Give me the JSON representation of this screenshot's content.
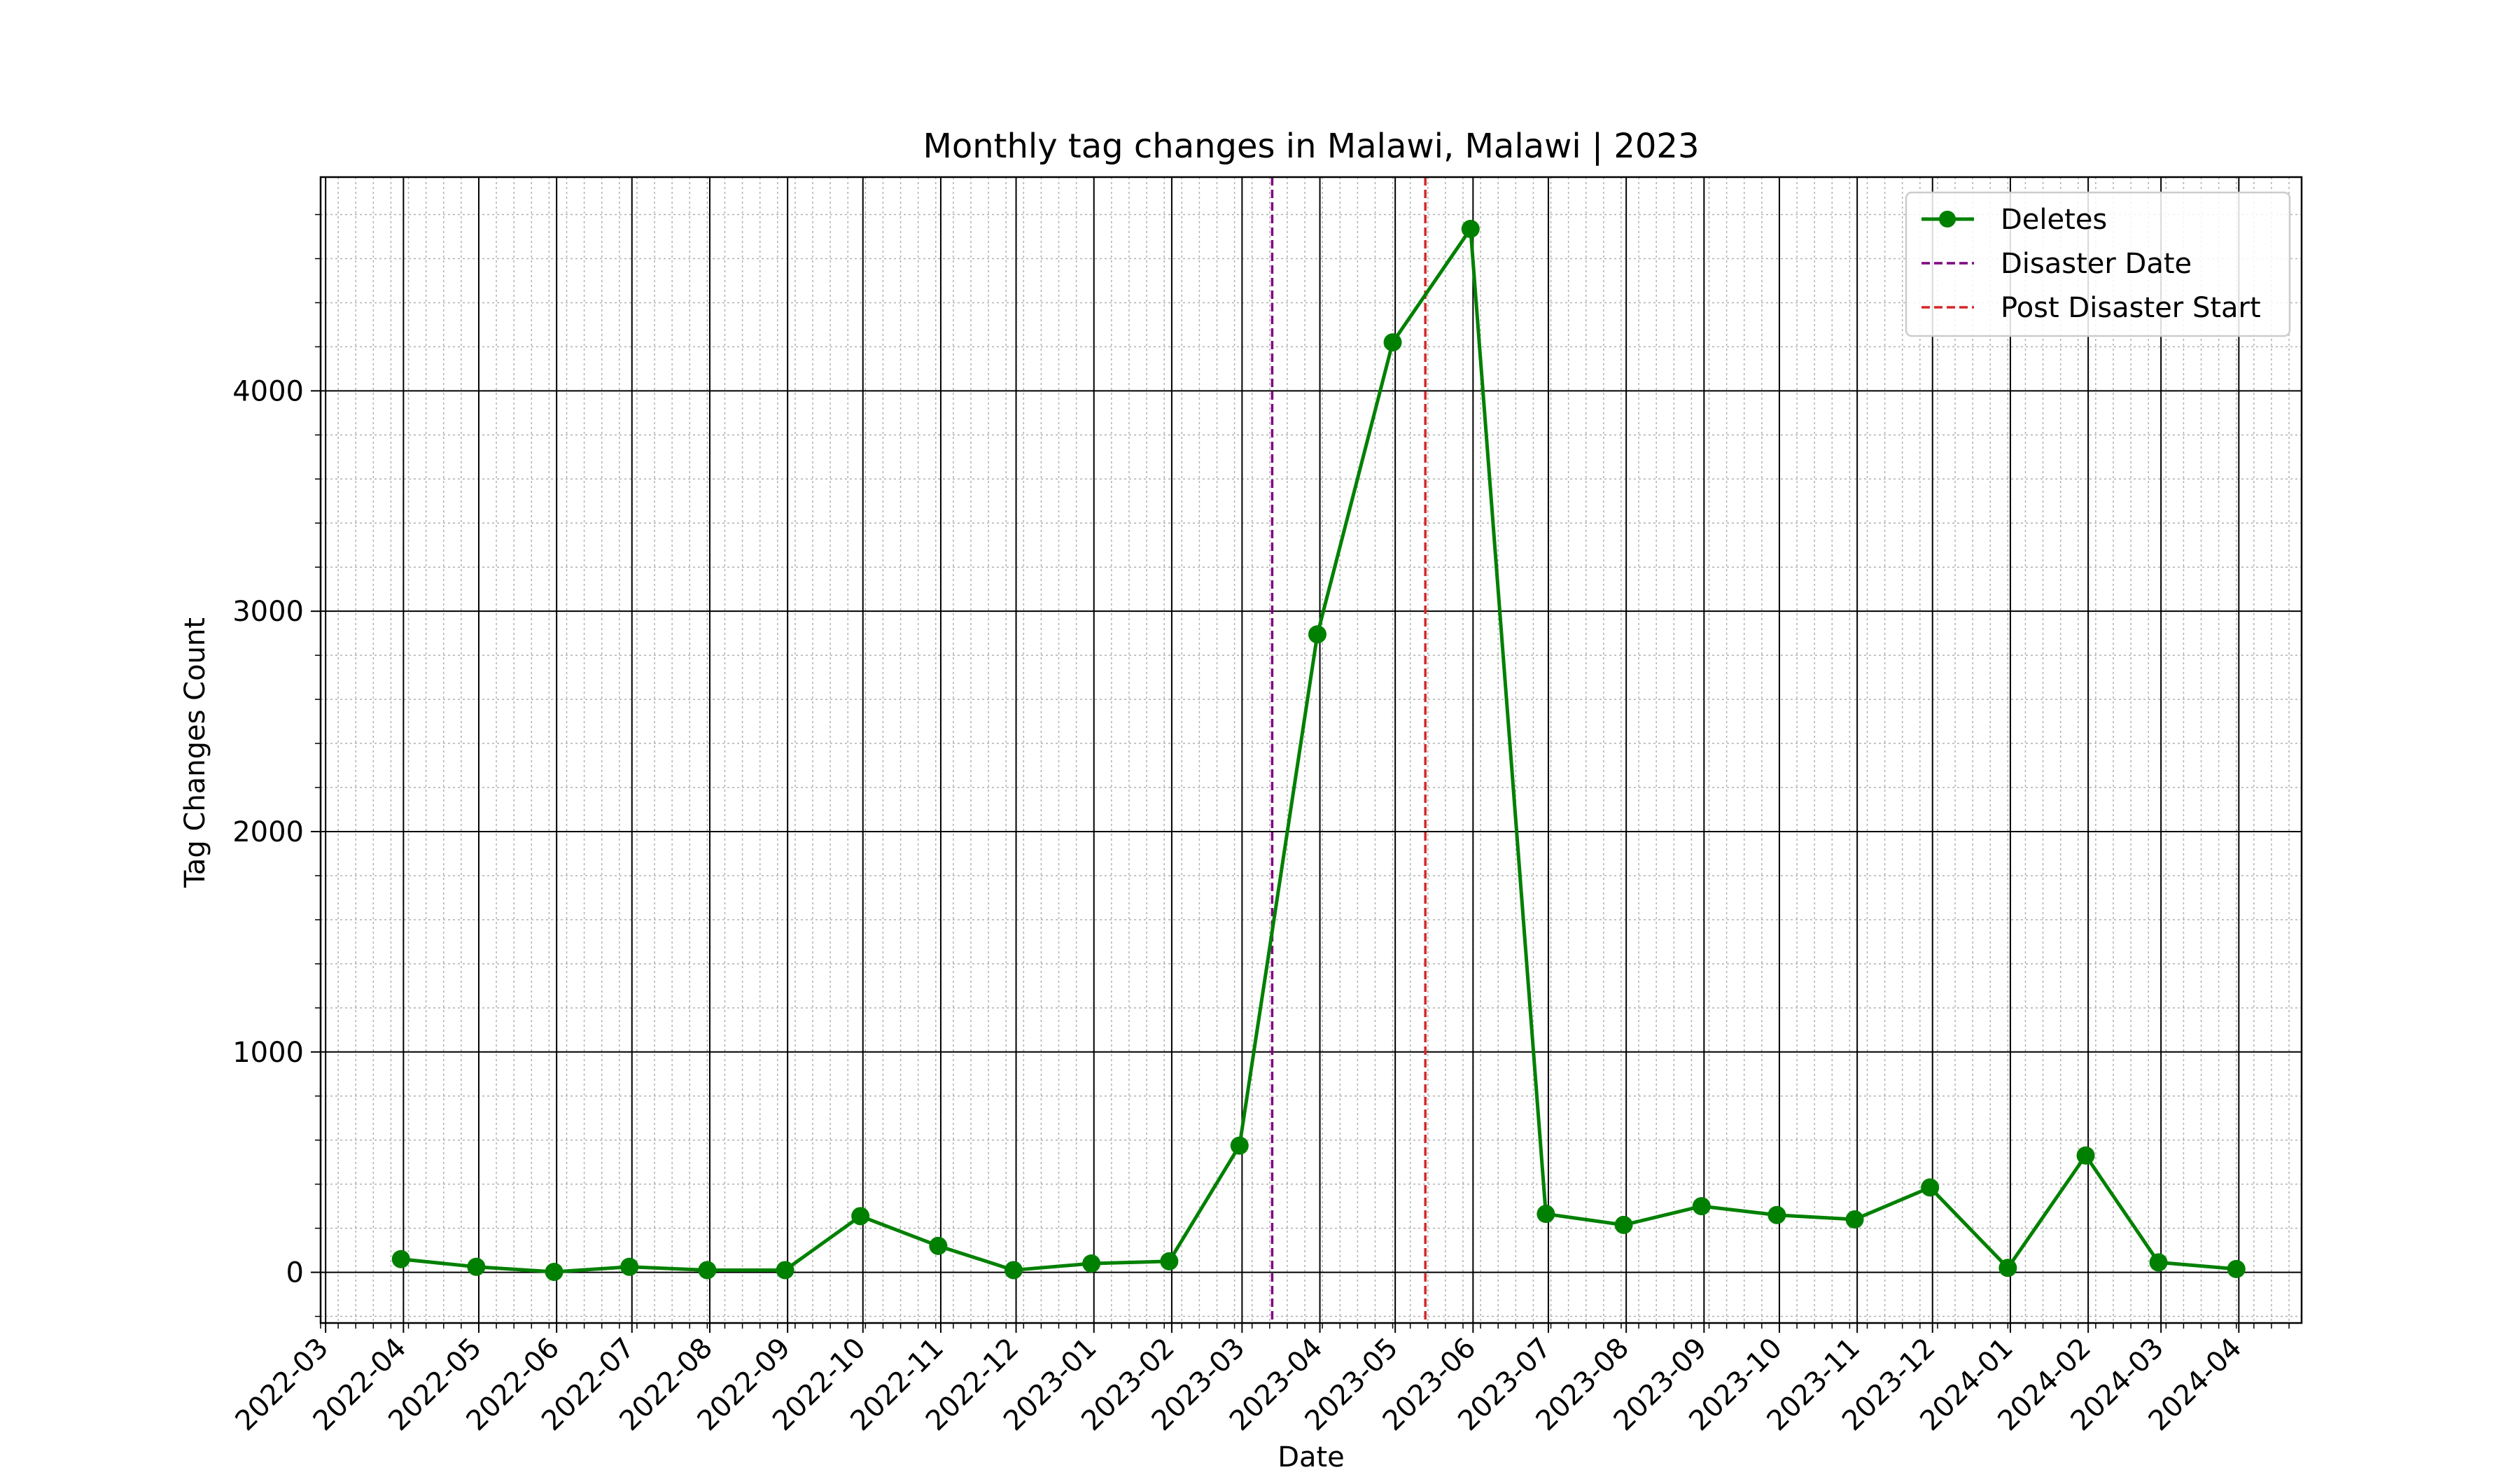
{
  "chart_data": {
    "type": "line",
    "title": "Monthly tag changes in Malawi, Malawi | 2023",
    "xlabel": "Date",
    "ylabel": "Tag Changes Count",
    "x_ticks": [
      "2022-03",
      "2022-04",
      "2022-05",
      "2022-06",
      "2022-07",
      "2022-08",
      "2022-09",
      "2022-10",
      "2022-11",
      "2022-12",
      "2023-01",
      "2023-02",
      "2023-03",
      "2023-04",
      "2023-05",
      "2023-06",
      "2023-07",
      "2023-08",
      "2023-09",
      "2023-10",
      "2023-11",
      "2023-12",
      "2024-01",
      "2024-02",
      "2024-03",
      "2024-04"
    ],
    "y_ticks": [
      0,
      1000,
      2000,
      3000,
      4000
    ],
    "xlim": [
      "2022-02-27",
      "2024-04-26"
    ],
    "ylim": [
      -230,
      4970
    ],
    "grid": true,
    "legend_placement": "top-right",
    "series": [
      {
        "name": "Deletes",
        "color": "#008000",
        "marker": "circle",
        "x": [
          "2022-03-31",
          "2022-04-30",
          "2022-05-31",
          "2022-06-30",
          "2022-07-31",
          "2022-08-31",
          "2022-09-30",
          "2022-10-31",
          "2022-11-30",
          "2022-12-31",
          "2023-01-31",
          "2023-02-28",
          "2023-03-31",
          "2023-04-30",
          "2023-05-31",
          "2023-06-30",
          "2023-07-31",
          "2023-08-31",
          "2023-09-30",
          "2023-10-31",
          "2023-11-30",
          "2023-12-31",
          "2024-01-31",
          "2024-02-29",
          "2024-03-31"
        ],
        "values": [
          60,
          25,
          2,
          25,
          10,
          10,
          255,
          120,
          10,
          40,
          50,
          575,
          2895,
          4220,
          4735,
          265,
          215,
          300,
          260,
          240,
          385,
          20,
          530,
          45,
          15
        ]
      }
    ],
    "reference_lines": [
      {
        "name": "Disaster Date",
        "x": "2023-03-13",
        "color": "#800080",
        "style": "dashed"
      },
      {
        "name": "Post Disaster Start",
        "x": "2023-05-13",
        "color": "#d62728",
        "style": "dashed"
      }
    ]
  }
}
